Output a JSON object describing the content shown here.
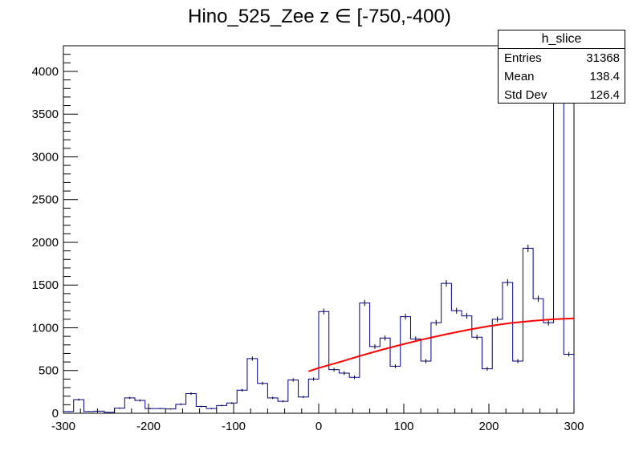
{
  "title": "Hino_525_Zee z  ∈ [-750,-400)",
  "stats": {
    "name": "h_slice",
    "rows": [
      {
        "label": "Entries",
        "value": "31368"
      },
      {
        "label": "Mean",
        "value": "138.4"
      },
      {
        "label": "Std Dev",
        "value": "126.4"
      }
    ]
  },
  "chart_data": {
    "type": "bar",
    "title": "Hino_525_Zee z  ∈ [-750,-400)",
    "xlabel": "",
    "ylabel": "",
    "xlim": [
      -300,
      300
    ],
    "ylim": [
      0,
      4300
    ],
    "bin_width": 12,
    "x_ticks": [
      -300,
      -200,
      -100,
      0,
      100,
      200,
      300
    ],
    "y_ticks": [
      0,
      500,
      1000,
      1500,
      2000,
      2500,
      3000,
      3500,
      4000
    ],
    "histogram": {
      "bin_edges": [
        -300,
        -288,
        -276,
        -264,
        -252,
        -240,
        -228,
        -216,
        -204,
        -192,
        -180,
        -168,
        -156,
        -144,
        -132,
        -120,
        -108,
        -96,
        -84,
        -72,
        -60,
        -48,
        -36,
        -24,
        -12,
        0,
        12,
        24,
        36,
        48,
        60,
        72,
        84,
        96,
        108,
        120,
        132,
        144,
        156,
        168,
        180,
        192,
        204,
        216,
        228,
        240,
        252,
        264,
        276,
        288,
        300
      ],
      "counts": [
        20,
        160,
        20,
        25,
        10,
        60,
        180,
        150,
        55,
        55,
        50,
        105,
        230,
        80,
        55,
        90,
        120,
        270,
        640,
        350,
        180,
        140,
        390,
        190,
        400,
        1190,
        510,
        470,
        420,
        1290,
        780,
        880,
        550,
        1130,
        870,
        610,
        1060,
        1520,
        1200,
        1140,
        890,
        520,
        1100,
        1530,
        610,
        1930,
        1340,
        1060,
        4010,
        690
      ],
      "color": "#00008b"
    },
    "fit": {
      "color": "#ff0000",
      "x": [
        -12,
        0,
        25,
        50,
        75,
        100,
        125,
        150,
        175,
        200,
        225,
        250,
        275,
        300
      ],
      "y": [
        490,
        530,
        600,
        675,
        745,
        810,
        870,
        925,
        975,
        1020,
        1055,
        1080,
        1100,
        1110
      ]
    }
  }
}
